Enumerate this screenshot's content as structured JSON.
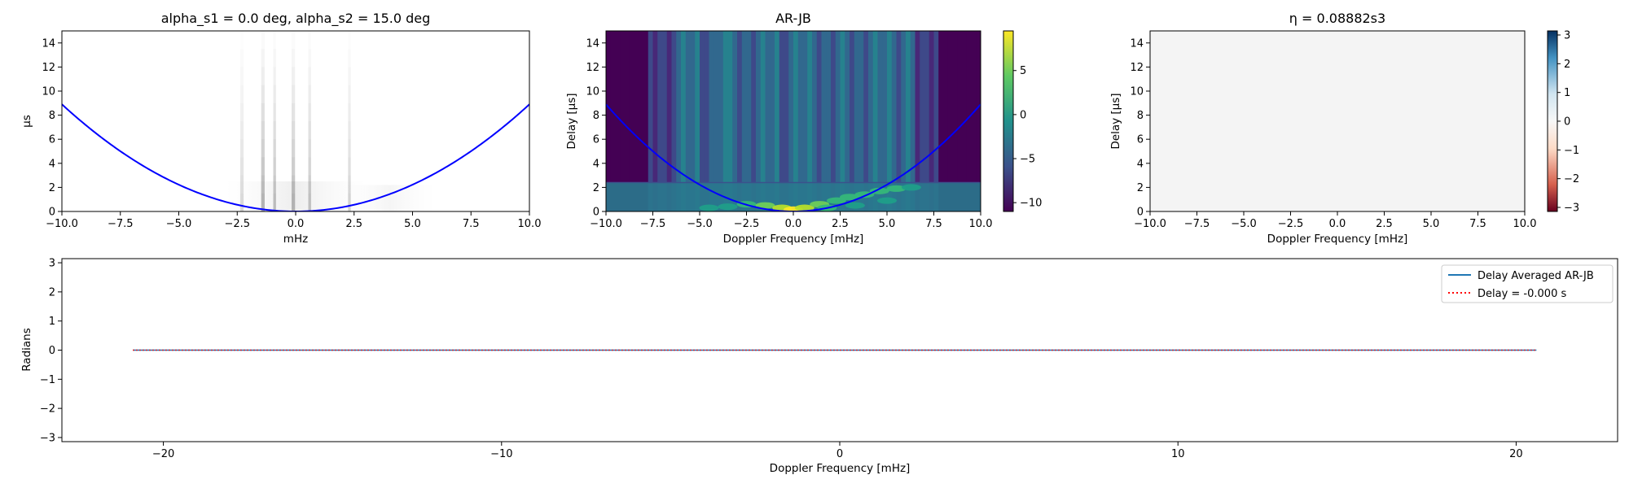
{
  "figure": {
    "background": "#ffffff"
  },
  "chart_data": [
    {
      "id": "p1",
      "type": "heatmap",
      "title": "alpha_s1 = 0.0 deg, alpha_s2 = 15.0 deg",
      "xlabel": "mHz",
      "ylabel": "µs",
      "xlim": [
        -10,
        10
      ],
      "ylim": [
        0,
        15
      ],
      "xticks": [
        -10,
        -7.5,
        -5,
        -2.5,
        0,
        2.5,
        5,
        7.5,
        10
      ],
      "xtick_labels": [
        "−10.0",
        "−7.5",
        "−5.0",
        "−2.5",
        "0.0",
        "2.5",
        "5.0",
        "7.5",
        "10.0"
      ],
      "yticks": [
        0,
        2,
        4,
        6,
        8,
        10,
        12,
        14
      ],
      "ytick_labels": [
        "0",
        "2",
        "4",
        "6",
        "8",
        "10",
        "12",
        "14"
      ],
      "grid": false,
      "colormap": "gray_r",
      "streaks": [
        {
          "x": -2.3,
          "w": 0.15,
          "strength": 0.25
        },
        {
          "x": -1.4,
          "w": 0.15,
          "strength": 0.55
        },
        {
          "x": -0.9,
          "w": 0.12,
          "strength": 0.45
        },
        {
          "x": -0.1,
          "w": 0.15,
          "strength": 0.5
        },
        {
          "x": 0.6,
          "w": 0.12,
          "strength": 0.4
        },
        {
          "x": 2.3,
          "w": 0.12,
          "strength": 0.3
        }
      ],
      "curve": {
        "color": "#0000ff",
        "coefficient": 0.089
      }
    },
    {
      "id": "p2",
      "type": "heatmap",
      "title": "AR-JB",
      "xlabel": "Doppler Frequency [mHz]",
      "ylabel": "Delay [µs]",
      "xlim": [
        -10,
        10
      ],
      "ylim": [
        0,
        15
      ],
      "xticks": [
        -10,
        -7.5,
        -5,
        -2.5,
        0,
        2.5,
        5,
        7.5,
        10
      ],
      "xtick_labels": [
        "−10.0",
        "−7.5",
        "−5.0",
        "−2.5",
        "0.0",
        "2.5",
        "5.0",
        "7.5",
        "10.0"
      ],
      "yticks": [
        0,
        2,
        4,
        6,
        8,
        10,
        12,
        14
      ],
      "ytick_labels": [
        "0",
        "2",
        "4",
        "6",
        "8",
        "10",
        "12",
        "14"
      ],
      "grid": false,
      "colormap": "viridis",
      "colorbar": {
        "range": [
          -11,
          9.5
        ],
        "ticks": [
          -10,
          -5,
          0,
          5
        ],
        "tick_labels": [
          "−10",
          "−5",
          "0",
          "5"
        ]
      },
      "curve": {
        "color": "#0000ff",
        "coefficient": 0.089
      }
    },
    {
      "id": "p3",
      "type": "heatmap",
      "title": "η = 0.08882s3",
      "xlabel": "Doppler Frequency [mHz]",
      "ylabel": "Delay [µs]",
      "xlim": [
        -10,
        10
      ],
      "ylim": [
        0,
        15
      ],
      "xticks": [
        -10,
        -7.5,
        -5,
        -2.5,
        0,
        2.5,
        5,
        7.5,
        10
      ],
      "xtick_labels": [
        "−10.0",
        "−7.5",
        "−5.0",
        "−2.5",
        "0.0",
        "2.5",
        "5.0",
        "7.5",
        "10.0"
      ],
      "yticks": [
        0,
        2,
        4,
        6,
        8,
        10,
        12,
        14
      ],
      "ytick_labels": [
        "0",
        "2",
        "4",
        "6",
        "8",
        "10",
        "12",
        "14"
      ],
      "grid": false,
      "colormap": "RdBu",
      "fill_value": 0,
      "colorbar": {
        "range": [
          -3.14159,
          3.14159
        ],
        "ticks": [
          -3,
          -2,
          -1,
          0,
          1,
          2,
          3
        ],
        "tick_labels": [
          "−3",
          "−2",
          "−1",
          "0",
          "1",
          "2",
          "3"
        ]
      }
    },
    {
      "id": "p4",
      "type": "line",
      "title": "",
      "xlabel": "Doppler Frequency [mHz]",
      "ylabel": "Radians",
      "xlim": [
        -23,
        23
      ],
      "ylim": [
        -3.14159,
        3.14159
      ],
      "xticks": [
        -20,
        -10,
        0,
        10,
        20
      ],
      "xtick_labels": [
        "−20",
        "−10",
        "0",
        "10",
        "20"
      ],
      "yticks": [
        -3,
        -2,
        -1,
        0,
        1,
        2,
        3
      ],
      "ytick_labels": [
        "−3",
        "−2",
        "−1",
        "0",
        "1",
        "2",
        "3"
      ],
      "grid": false,
      "legend_position": "top-right",
      "series": [
        {
          "name": "Delay Averaged  AR-JB",
          "color": "#1f77b4",
          "style": "solid",
          "x": [
            -20.9,
            20.6
          ],
          "y": [
            0,
            0
          ]
        },
        {
          "name": "Delay = -0.000 s",
          "color": "#ff0000",
          "style": "dotted",
          "x": [
            -20.9,
            20.6
          ],
          "y": [
            0,
            0
          ]
        }
      ]
    }
  ]
}
